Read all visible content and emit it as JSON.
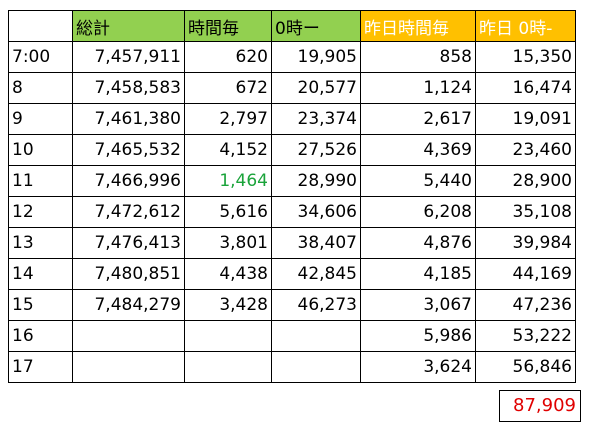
{
  "colors": {
    "header_green": "#92d050",
    "header_orange": "#ffc000",
    "highlight_green": "#1aa33a",
    "total_red": "#e00000"
  },
  "headers": [
    "",
    "総計",
    "時間毎",
    "0時ー",
    "昨日時間毎",
    "昨日 0時-"
  ],
  "rows": [
    {
      "time": "7:00",
      "total": "7,457,911",
      "hourly": "620",
      "since0": "19,905",
      "y_hourly": "858",
      "y_since0": "15,350"
    },
    {
      "time": "8",
      "total": "7,458,583",
      "hourly": "672",
      "since0": "20,577",
      "y_hourly": "1,124",
      "y_since0": "16,474"
    },
    {
      "time": "9",
      "total": "7,461,380",
      "hourly": "2,797",
      "since0": "23,374",
      "y_hourly": "2,617",
      "y_since0": "19,091"
    },
    {
      "time": "10",
      "total": "7,465,532",
      "hourly": "4,152",
      "since0": "27,526",
      "y_hourly": "4,369",
      "y_since0": "23,460"
    },
    {
      "time": "11",
      "total": "7,466,996",
      "hourly": "1,464",
      "since0": "28,990",
      "y_hourly": "5,440",
      "y_since0": "28,900"
    },
    {
      "time": "12",
      "total": "7,472,612",
      "hourly": "5,616",
      "since0": "34,606",
      "y_hourly": "6,208",
      "y_since0": "35,108"
    },
    {
      "time": "13",
      "total": "7,476,413",
      "hourly": "3,801",
      "since0": "38,407",
      "y_hourly": "4,876",
      "y_since0": "39,984"
    },
    {
      "time": "14",
      "total": "7,480,851",
      "hourly": "4,438",
      "since0": "42,845",
      "y_hourly": "4,185",
      "y_since0": "44,169"
    },
    {
      "time": "15",
      "total": "7,484,279",
      "hourly": "3,428",
      "since0": "46,273",
      "y_hourly": "3,067",
      "y_since0": "47,236"
    },
    {
      "time": "16",
      "total": "",
      "hourly": "",
      "since0": "",
      "y_hourly": "5,986",
      "y_since0": "53,222"
    },
    {
      "time": "17",
      "total": "",
      "hourly": "",
      "since0": "",
      "y_hourly": "3,624",
      "y_since0": "56,846"
    }
  ],
  "total_box": "87,909"
}
